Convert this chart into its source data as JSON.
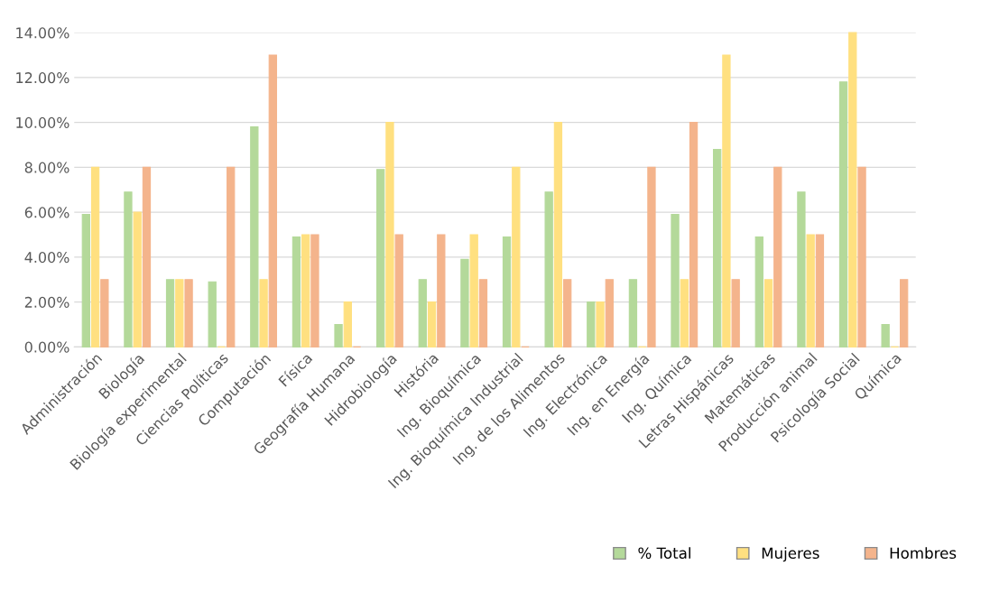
{
  "chart_data": {
    "type": "bar",
    "categories": [
      "Administración",
      "Biología",
      "Biología experimental",
      "Ciencias Políticas",
      "Computación",
      "Física",
      "Geografía Humana",
      "Hidrobiología",
      "História",
      "Ing. Bioquímica",
      "Ing. Bioquímica Industrial",
      "Ing. de los Alimentos",
      "Ing. Electrónica",
      "Ing. en Energía",
      "Ing. Química",
      "Letras Hispánicas",
      "Matemáticas",
      "Producción animal",
      "Psicología Social",
      "Química"
    ],
    "series": [
      {
        "name": "% Total",
        "color": "#b4d99a",
        "values": [
          5.9,
          6.9,
          3,
          2.9,
          9.8,
          4.9,
          1,
          7.9,
          3,
          3.9,
          4.9,
          6.9,
          2,
          3,
          5.9,
          8.8,
          4.9,
          6.9,
          11.8,
          1
        ]
      },
      {
        "name": "Mujeres",
        "color": "#ffe080",
        "values": [
          8,
          6,
          3,
          0,
          3,
          5,
          2,
          10,
          2,
          5,
          8,
          10,
          2,
          0,
          3,
          13,
          3,
          5,
          14,
          0
        ]
      },
      {
        "name": "Hombres",
        "color": "#f4b48c",
        "values": [
          3,
          8,
          3,
          8,
          13,
          5,
          0,
          5,
          5,
          3,
          0,
          3,
          3,
          8,
          10,
          3,
          8,
          5,
          8,
          3
        ]
      }
    ],
    "ylim": [
      0,
      14
    ],
    "yticks": [
      {
        "value": 0,
        "label": "0.00%"
      },
      {
        "value": 2,
        "label": "2.00%"
      },
      {
        "value": 4,
        "label": "4.00%"
      },
      {
        "value": 6,
        "label": "6.00%"
      },
      {
        "value": 8,
        "label": "8.00%"
      },
      {
        "value": 10,
        "label": "10.00%"
      },
      {
        "value": 12,
        "label": "12.00%"
      },
      {
        "value": 14,
        "label": "14.00%"
      }
    ],
    "grid": "y",
    "legend": "bottom right"
  }
}
